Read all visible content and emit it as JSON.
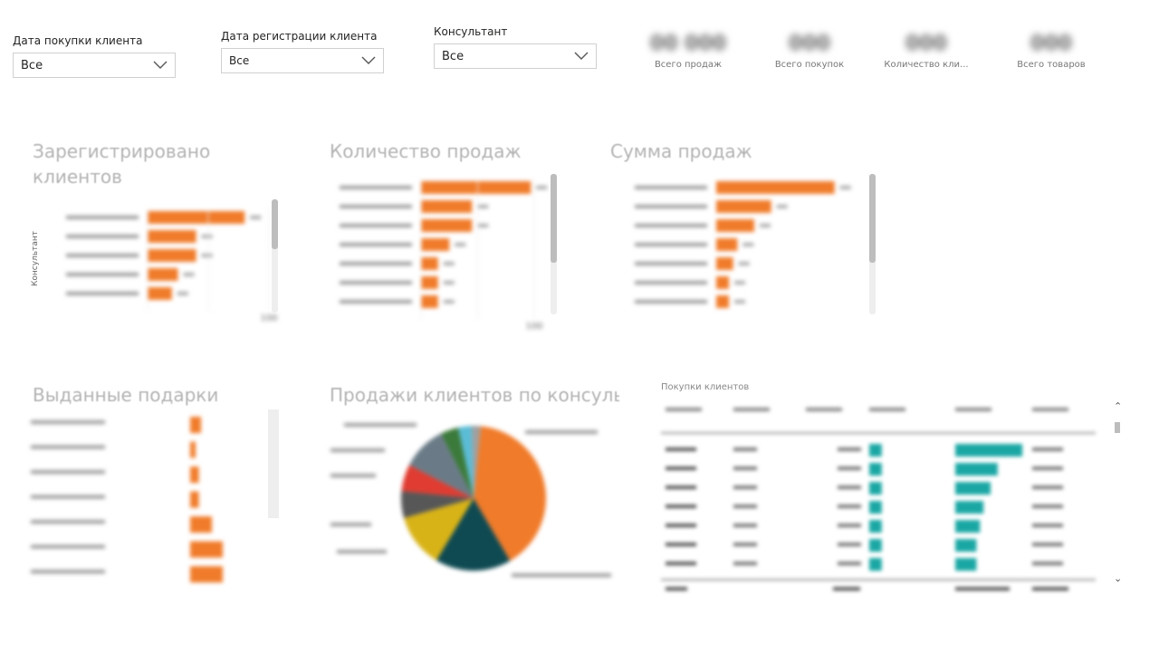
{
  "slicers": [
    {
      "label": "Дата покупки клиента",
      "value": "Все"
    },
    {
      "label": "Дата регистрации клиента",
      "value": "Все"
    },
    {
      "label": "Консультант",
      "value": "Все"
    }
  ],
  "kpis": [
    {
      "value": "00 000",
      "label": "Всего продаж"
    },
    {
      "value": "000",
      "label": "Всего покупок"
    },
    {
      "value": "000",
      "label": "Количество кли..."
    },
    {
      "value": "000",
      "label": "Всего товаров"
    }
  ],
  "visuals": {
    "registered_title": "Зарегистрировано клиентов",
    "registered_axis": "Консультант",
    "sales_count_title": "Количество продаж",
    "sales_sum_title": "Сумма продаж",
    "gifts_title": "Выданные подарки",
    "pie_title": "Продажи клиентов по консуль...",
    "table_title": "Покупки клиентов"
  },
  "colors": {
    "orange": "#f07b2a",
    "teal": "#1aa7a4",
    "dark_teal": "#0f4a52",
    "gold": "#d8b317",
    "gray": "#575757",
    "red": "#e03c31",
    "slate": "#6a7b87",
    "green": "#3b7a3a",
    "lightblue": "#5bbcd6"
  },
  "chart_data": [
    {
      "type": "bar",
      "orientation": "horizontal",
      "title": "Зарегистрировано клиентов",
      "ylabel": "Консультант",
      "categories": [
        "",
        "",
        "",
        "",
        ""
      ],
      "values": [
        80,
        40,
        40,
        25,
        20
      ],
      "xlim": [
        0,
        100
      ],
      "x_ticks": [
        "",
        "",
        "100"
      ]
    },
    {
      "type": "bar",
      "orientation": "horizontal",
      "title": "Количество продаж",
      "categories": [
        "",
        "",
        "",
        "",
        "",
        "",
        ""
      ],
      "values": [
        97,
        45,
        45,
        25,
        15,
        15,
        15
      ],
      "xlim": [
        0,
        100
      ],
      "x_ticks": [
        "",
        "",
        "100"
      ]
    },
    {
      "type": "bar",
      "orientation": "horizontal",
      "title": "Сумма продаж",
      "categories": [
        "",
        "",
        "",
        "",
        "",
        "",
        ""
      ],
      "values": [
        140,
        65,
        45,
        25,
        20,
        15,
        15
      ],
      "xlim": [
        0,
        150
      ]
    },
    {
      "type": "bar",
      "orientation": "horizontal",
      "title": "Выданные подарки",
      "categories": [
        "",
        "",
        "",
        "",
        "",
        "",
        ""
      ],
      "values": [
        10,
        5,
        8,
        8,
        20,
        30,
        30
      ],
      "xlim": [
        0,
        100
      ]
    },
    {
      "type": "pie",
      "title": "Продажи клиентов по консуль...",
      "slices": [
        {
          "value": 40,
          "color": "#f07b2a"
        },
        {
          "value": 17,
          "color": "#0f4a52"
        },
        {
          "value": 12,
          "color": "#d8b317"
        },
        {
          "value": 6,
          "color": "#575757"
        },
        {
          "value": 6,
          "color": "#e03c31"
        },
        {
          "value": 10,
          "color": "#6a7b87"
        },
        {
          "value": 4,
          "color": "#3b7a3a"
        },
        {
          "value": 3,
          "color": "#5bbcd6"
        },
        {
          "value": 2,
          "color": "#a0a0a0"
        }
      ]
    }
  ],
  "table": {
    "title": "Покупки клиентов",
    "columns": [
      "",
      "",
      "",
      "",
      "",
      ""
    ],
    "rows": [
      {
        "c1": "",
        "c2": "",
        "c3": "",
        "bar1": 0.55,
        "bar2": 0.95,
        "c6": ""
      },
      {
        "c1": "",
        "c2": "",
        "c3": "",
        "bar1": 0.55,
        "bar2": 0.6,
        "c6": ""
      },
      {
        "c1": "",
        "c2": "",
        "c3": "",
        "bar1": 0.55,
        "bar2": 0.5,
        "c6": ""
      },
      {
        "c1": "",
        "c2": "",
        "c3": "",
        "bar1": 0.55,
        "bar2": 0.4,
        "c6": ""
      },
      {
        "c1": "",
        "c2": "",
        "c3": "",
        "bar1": 0.55,
        "bar2": 0.35,
        "c6": ""
      },
      {
        "c1": "",
        "c2": "",
        "c3": "",
        "bar1": 0.55,
        "bar2": 0.3,
        "c6": ""
      },
      {
        "c1": "",
        "c2": "",
        "c3": "",
        "bar1": 0.55,
        "bar2": 0.3,
        "c6": ""
      }
    ]
  }
}
